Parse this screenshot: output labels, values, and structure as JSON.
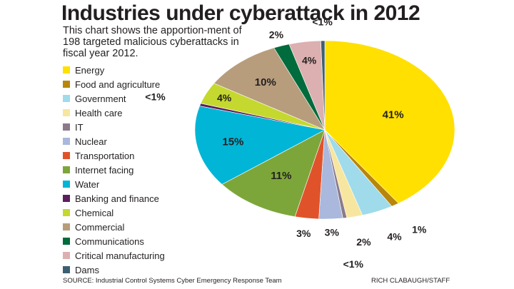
{
  "chart_data": {
    "type": "pie",
    "title": "Industries under cyberattack in 2012",
    "subtitle": "This chart shows the apportion-ment of 198 targeted malicious cyberattacks in fiscal year 2012.",
    "categories": [
      "Energy",
      "Food and agriculture",
      "Government",
      "Health care",
      "IT",
      "Nuclear",
      "Transportation",
      "Internet facing",
      "Water",
      "Banking and finance",
      "Chemical",
      "Commercial",
      "Communications",
      "Critical manufacturing",
      "Dams"
    ],
    "values": [
      41,
      1,
      4,
      2,
      0.5,
      3,
      3,
      11,
      15,
      0.5,
      4,
      10,
      2,
      4,
      0.5
    ],
    "value_labels": [
      "41%",
      "1%",
      "4%",
      "2%",
      "<1%",
      "3%",
      "3%",
      "11%",
      "15%",
      "<1%",
      "4%",
      "10%",
      "2%",
      "4%",
      "<1%"
    ],
    "colors": [
      "#ffe000",
      "#b8860b",
      "#9fdbea",
      "#f7e6a0",
      "#8c7a8a",
      "#a9b8dc",
      "#e0532a",
      "#7da63a",
      "#00b5d6",
      "#5b1f5e",
      "#c5d82f",
      "#b79d7c",
      "#006b3c",
      "#dcb0b0",
      "#3d5f73"
    ],
    "legend_position": "left",
    "start_angle_deg": 90,
    "direction": "clockwise"
  },
  "footer": {
    "source": "SOURCE: Industrial Control Systems Cyber Emergency Response Team",
    "credit": "RICH CLABAUGH/STAFF"
  }
}
